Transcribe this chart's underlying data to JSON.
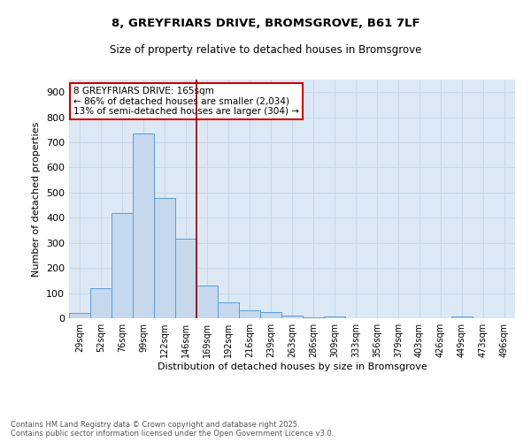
{
  "title_line1": "8, GREYFRIARS DRIVE, BROMSGROVE, B61 7LF",
  "title_line2": "Size of property relative to detached houses in Bromsgrove",
  "xlabel": "Distribution of detached houses by size in Bromsgrove",
  "ylabel": "Number of detached properties",
  "categories": [
    "29sqm",
    "52sqm",
    "76sqm",
    "99sqm",
    "122sqm",
    "146sqm",
    "169sqm",
    "192sqm",
    "216sqm",
    "239sqm",
    "263sqm",
    "286sqm",
    "309sqm",
    "333sqm",
    "356sqm",
    "379sqm",
    "403sqm",
    "426sqm",
    "449sqm",
    "473sqm",
    "496sqm"
  ],
  "values": [
    20,
    120,
    420,
    735,
    480,
    315,
    130,
    65,
    30,
    25,
    10,
    5,
    8,
    0,
    0,
    0,
    0,
    0,
    8,
    0,
    0
  ],
  "bar_color": "#c5d8ed",
  "bar_edge_color": "#5b9bd5",
  "grid_color": "#c8d8e8",
  "background_color": "#dce9f5",
  "annotation_text": "8 GREYFRIARS DRIVE: 165sqm\n← 86% of detached houses are smaller (2,034)\n13% of semi-detached houses are larger (304) →",
  "vline_x": 5.5,
  "vline_color": "#8b0000",
  "ylim": [
    0,
    950
  ],
  "yticks": [
    0,
    100,
    200,
    300,
    400,
    500,
    600,
    700,
    800,
    900
  ],
  "footer_line1": "Contains HM Land Registry data © Crown copyright and database right 2025.",
  "footer_line2": "Contains public sector information licensed under the Open Government Licence v3.0."
}
